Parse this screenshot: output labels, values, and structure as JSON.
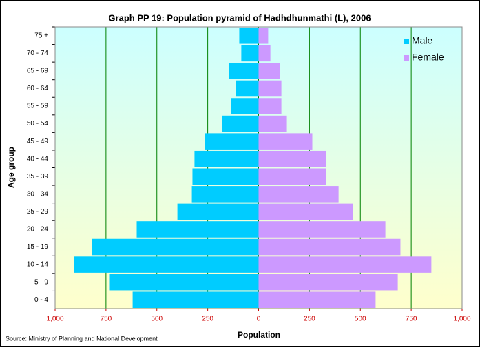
{
  "chart_data": {
    "type": "pyramid",
    "title": "Graph PP 19: Population pyramid  of Hadhdhunmathi (L), 2006",
    "x_label": "Population",
    "y_label": "Age group",
    "source": "Source: Ministry of Planning and National Development",
    "categories": [
      "75 +",
      "70 - 74",
      "65 - 69",
      "60 - 64",
      "55 - 59",
      "50 - 54",
      "45 - 49",
      "40 - 44",
      "35 - 39",
      "30 - 34",
      "25 - 29",
      "20 - 24",
      "15 - 19",
      "10 - 14",
      "5 - 9",
      "0 - 4"
    ],
    "series": [
      {
        "name": "Male",
        "color": "#00ccff",
        "values": [
          -95,
          -85,
          -145,
          -112,
          -135,
          -179,
          -264,
          -315,
          -325,
          -328,
          -399,
          -599,
          -819,
          -907,
          -731,
          -619
        ]
      },
      {
        "name": "Female",
        "color": "#cc99ff",
        "values": [
          47,
          58,
          105,
          112,
          112,
          139,
          264,
          332,
          332,
          393,
          464,
          623,
          697,
          849,
          684,
          575
        ]
      }
    ],
    "xlim": [
      -1000,
      1000
    ],
    "xticks": [
      {
        "value": -1000,
        "label": "1,000"
      },
      {
        "value": -750,
        "label": "750"
      },
      {
        "value": -500,
        "label": "500"
      },
      {
        "value": -250,
        "label": "250"
      },
      0,
      250,
      500,
      750,
      {
        "value": 1000,
        "label": "1,000"
      }
    ],
    "grid": true,
    "legend": "top-right"
  }
}
